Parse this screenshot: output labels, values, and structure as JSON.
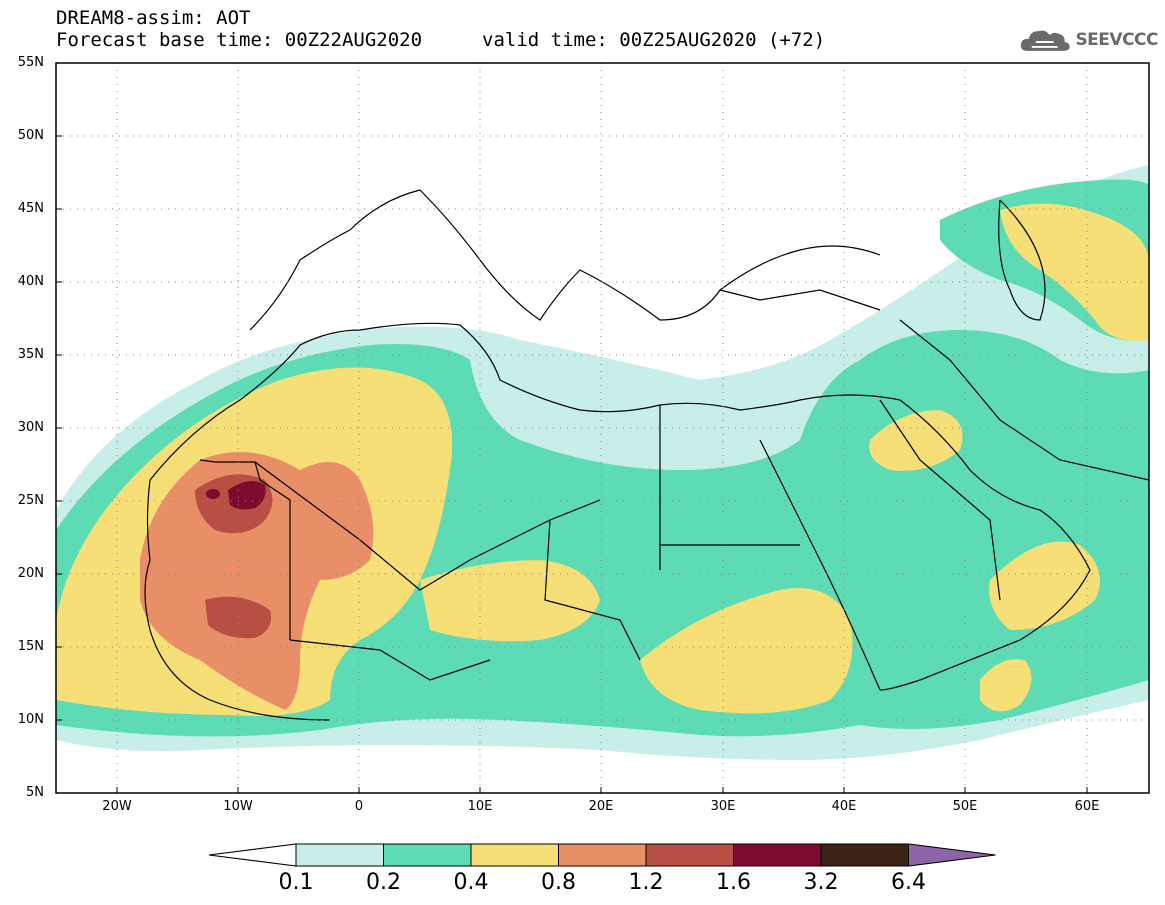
{
  "header": {
    "title": "DREAM8-assim: AOT",
    "forecast_base": "Forecast base time: 00Z22AUG2020",
    "valid_time": "valid time: 00Z25AUG2020 (+72)"
  },
  "logo": {
    "text": "SEEVCCC",
    "icon": "cloud-icon"
  },
  "axes": {
    "lat_labels": [
      "55N",
      "50N",
      "45N",
      "40N",
      "35N",
      "30N",
      "25N",
      "20N",
      "15N",
      "10N",
      "5N"
    ],
    "lon_labels": [
      "20W",
      "10W",
      "0",
      "10E",
      "20E",
      "30E",
      "40E",
      "50E",
      "60E"
    ]
  },
  "colorbar": {
    "labels": [
      "0.1",
      "0.2",
      "0.4",
      "0.8",
      "1.2",
      "1.6",
      "3.2",
      "6.4"
    ],
    "colors": [
      "#ffffff",
      "#c7eee8",
      "#5ddbb4",
      "#f5df76",
      "#e88f68",
      "#b84f44",
      "#7e0b2e",
      "#3b2415",
      "#8d64a8"
    ]
  }
}
